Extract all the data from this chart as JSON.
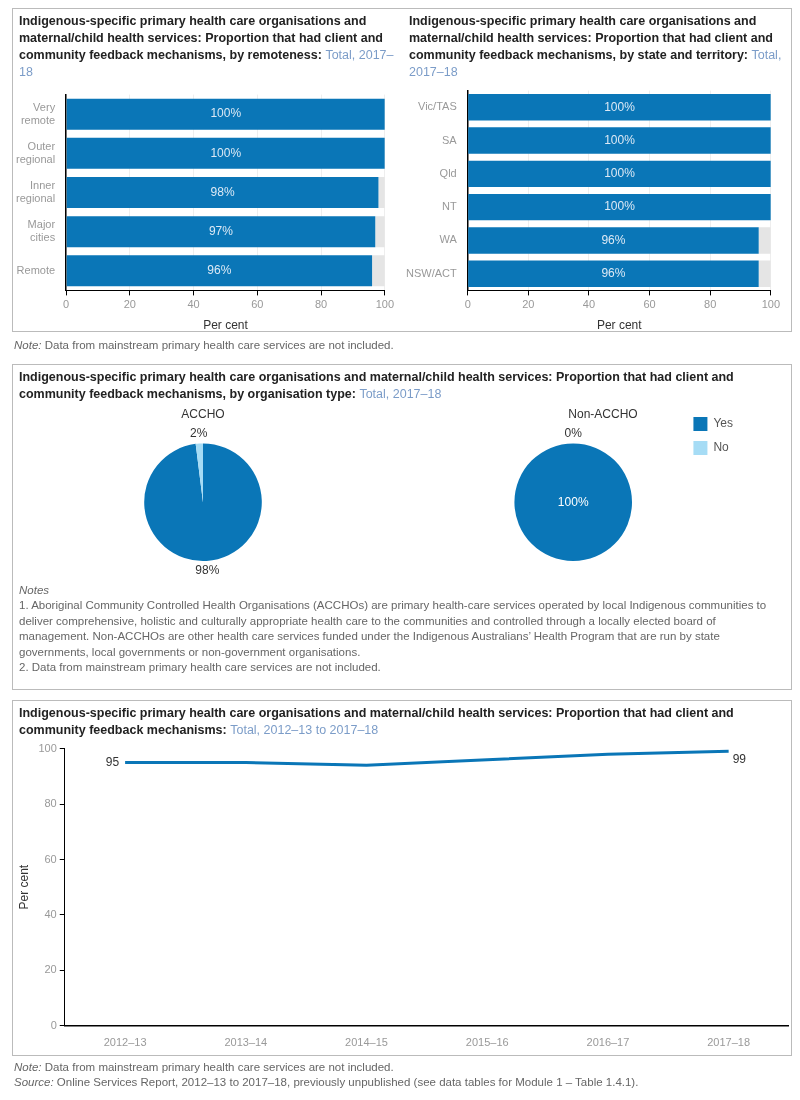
{
  "chart_data": [
    {
      "type": "bar",
      "orientation": "horizontal",
      "stacked": true,
      "title": "Indigenous-specific primary health care organisations and maternal/child health services: Proportion that had client and community feedback mechanisms, by remoteness:",
      "subtitle": "Total, 2017–18",
      "xlabel": "Per cent",
      "categories": [
        "Very remote",
        "Outer regional",
        "Inner regional",
        "Major cities",
        "Remote"
      ],
      "series": [
        {
          "color": "#0a76b7",
          "values": [
            100,
            100,
            98,
            97,
            96
          ],
          "value_labels": [
            "100%",
            "100%",
            "98%",
            "97%",
            "96%"
          ]
        },
        {
          "color": "#e5e5e5",
          "values": [
            0,
            0,
            2,
            3,
            4
          ]
        }
      ],
      "xlim": [
        0,
        100
      ],
      "xticks": [
        0,
        20,
        40,
        60,
        80,
        100
      ],
      "grid": "x",
      "annotations": [
        "Note: Data from mainstream primary health care services are not included."
      ]
    },
    {
      "type": "bar",
      "orientation": "horizontal",
      "stacked": true,
      "title": "Indigenous-specific primary health care organisations and maternal/child health services: Proportion that had client and community feedback mechanisms, by state and territory:",
      "subtitle": "Total, 2017–18",
      "xlabel": "Per cent",
      "categories": [
        "Vic/TAS",
        "SA",
        "Qld",
        "NT",
        "WA",
        "NSW/ACT"
      ],
      "series": [
        {
          "color": "#0a76b7",
          "values": [
            100,
            100,
            100,
            100,
            96,
            96
          ],
          "value_labels": [
            "100%",
            "100%",
            "100%",
            "100%",
            "96%",
            "96%"
          ]
        },
        {
          "color": "#e5e5e5",
          "values": [
            0,
            0,
            0,
            0,
            4,
            4
          ]
        }
      ],
      "xlim": [
        0,
        100
      ],
      "xticks": [
        0,
        20,
        40,
        60,
        80,
        100
      ],
      "grid": "x"
    },
    {
      "type": "other",
      "title": "Indigenous-specific primary health care organisations and maternal/child health services: Proportion that had client and community feedback mechanisms, by organisation type:",
      "subtitle": "Total, 2017–18"
    },
    {
      "type": "pie",
      "title": "ACCHO",
      "categories": [
        null,
        null
      ],
      "values": [
        98,
        2
      ],
      "colors": [
        "#0a76b7",
        "#a6dcf5"
      ],
      "value_labels": [
        "98%",
        "2%"
      ]
    },
    {
      "type": "pie",
      "title": "Non-ACCHO",
      "categories": [
        "Yes",
        "No"
      ],
      "values": [
        100,
        0
      ],
      "colors": [
        "#0a76b7",
        "#a6dcf5"
      ],
      "value_labels": [
        "100%",
        "0%"
      ],
      "legend": "right",
      "annotations": [
        "Notes",
        "1. Aboriginal Community Controlled Health Organisations (ACCHOs) are primary health-care services operated by local Indigenous communities to deliver comprehensive, holistic and culturally appropriate health care to the communities and controlled through a locally elected board of management. Non-ACCHOs are other health care services funded under the Indigenous Australians’ Health Program that are run by state governments, local governments or non-government organisations.",
        "2. Data from mainstream primary health care services are not included."
      ]
    },
    {
      "type": "line",
      "title": "Indigenous-specific primary health care organisations and maternal/child health services: Proportion that had client and community feedback mechanisms:",
      "subtitle": "Total, 2012–13 to 2017–18",
      "ylabel": "Per cent",
      "categories": [
        "2012–13",
        "2013–14",
        "2014–15",
        "2015–16",
        "2016–17",
        "2017–18"
      ],
      "series": [
        {
          "color": "#0a76b7",
          "values": [
            95,
            95,
            94,
            96,
            98,
            99
          ],
          "value_labels": [
            "95",
            null,
            null,
            null,
            null,
            "99"
          ]
        }
      ],
      "ylim": [
        0,
        100
      ],
      "yticks": [
        0,
        20,
        40,
        60,
        80,
        100
      ],
      "marker": "none",
      "line_style": "solid",
      "annotations": [
        "Note: Data from mainstream primary health care services are not included.",
        "Source: Online Services Report, 2012–13 to 2017–18, previously unpublished (see data tables for Module 1 – Table 1.4.1)."
      ]
    }
  ]
}
